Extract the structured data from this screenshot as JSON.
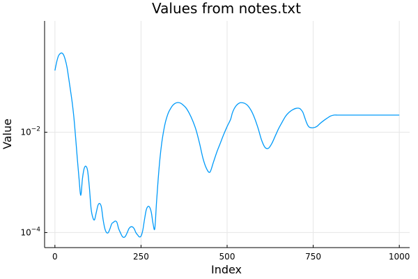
{
  "chart_data": {
    "type": "line",
    "title": "Values from notes.txt",
    "xlabel": "Index",
    "ylabel": "Value",
    "xlim": [
      -30,
      1030
    ],
    "ylim_log10": [
      -4.3,
      0.22
    ],
    "yscale": "log",
    "grid": true,
    "legend": "none",
    "x_ticks": [
      {
        "value": 0,
        "label": "0"
      },
      {
        "value": 250,
        "label": "250"
      },
      {
        "value": 500,
        "label": "500"
      },
      {
        "value": 750,
        "label": "750"
      },
      {
        "value": 1000,
        "label": "1000"
      }
    ],
    "y_ticks": [
      {
        "log10": -4,
        "base": "10",
        "exp": "−4"
      },
      {
        "log10": -2,
        "base": "10",
        "exp": "−2"
      }
    ],
    "series": [
      {
        "color": "#009af9",
        "x": [
          0,
          5,
          10,
          15,
          20,
          25,
          30,
          35,
          40,
          45,
          50,
          55,
          60,
          65,
          70,
          75,
          80,
          85,
          90,
          95,
          100,
          105,
          110,
          115,
          120,
          125,
          130,
          135,
          140,
          145,
          150,
          155,
          160,
          165,
          170,
          175,
          180,
          185,
          190,
          195,
          200,
          205,
          210,
          215,
          220,
          225,
          230,
          235,
          240,
          245,
          250,
          255,
          260,
          265,
          270,
          275,
          280,
          285,
          290,
          295,
          300,
          305,
          310,
          315,
          320,
          325,
          330,
          335,
          340,
          345,
          350,
          355,
          360,
          365,
          370,
          380,
          390,
          400,
          410,
          420,
          430,
          440,
          450,
          460,
          470,
          480,
          490,
          500,
          510,
          515,
          520,
          525,
          530,
          535,
          540,
          550,
          560,
          570,
          580,
          590,
          600,
          610,
          620,
          630,
          640,
          650,
          660,
          670,
          680,
          690,
          700,
          710,
          715,
          720,
          725,
          730,
          735,
          740,
          750,
          760,
          770,
          780,
          790,
          800,
          810,
          820,
          830,
          840,
          850,
          860,
          870,
          880,
          890,
          900,
          910,
          915,
          920,
          930,
          940,
          950,
          960,
          970,
          980,
          990,
          1000
        ],
        "y": [
          0.17,
          0.25,
          0.33,
          0.37,
          0.38,
          0.35,
          0.28,
          0.2,
          0.12,
          0.07,
          0.04,
          0.02,
          0.008,
          0.003,
          0.0012,
          0.00055,
          0.0012,
          0.0019,
          0.0021,
          0.0017,
          0.0008,
          0.0003,
          0.0002,
          0.00018,
          0.00025,
          0.00035,
          0.00038,
          0.00032,
          0.00018,
          0.00012,
          0.0001,
          0.0001,
          0.00012,
          0.00015,
          0.00016,
          0.00017,
          0.00016,
          0.00012,
          0.0001,
          8.5e-05,
          8e-05,
          8.5e-05,
          0.0001,
          0.00012,
          0.00013,
          0.00013,
          0.00012,
          0.0001,
          9e-05,
          8.2e-05,
          8.5e-05,
          0.00011,
          0.00018,
          0.00028,
          0.00033,
          0.00032,
          0.00025,
          0.00015,
          0.00012,
          0.0004,
          0.0012,
          0.003,
          0.006,
          0.01,
          0.015,
          0.02,
          0.025,
          0.029,
          0.033,
          0.036,
          0.038,
          0.039,
          0.039,
          0.038,
          0.036,
          0.031,
          0.024,
          0.017,
          0.011,
          0.006,
          0.003,
          0.0019,
          0.0016,
          0.0025,
          0.004,
          0.006,
          0.009,
          0.013,
          0.018,
          0.024,
          0.029,
          0.033,
          0.036,
          0.038,
          0.039,
          0.038,
          0.034,
          0.027,
          0.019,
          0.012,
          0.007,
          0.005,
          0.0048,
          0.006,
          0.0085,
          0.012,
          0.016,
          0.021,
          0.025,
          0.028,
          0.03,
          0.03,
          0.028,
          0.025,
          0.02,
          0.016,
          0.0135,
          0.0125,
          0.0123,
          0.013,
          0.015,
          0.017,
          0.019,
          0.021,
          0.022,
          0.022,
          0.022,
          0.022,
          0.022,
          0.022,
          0.022,
          0.022,
          0.022,
          0.022,
          0.022,
          0.022,
          0.022,
          0.022,
          0.022,
          0.022,
          0.022,
          0.022,
          0.022,
          0.022,
          0.022
        ]
      }
    ]
  }
}
